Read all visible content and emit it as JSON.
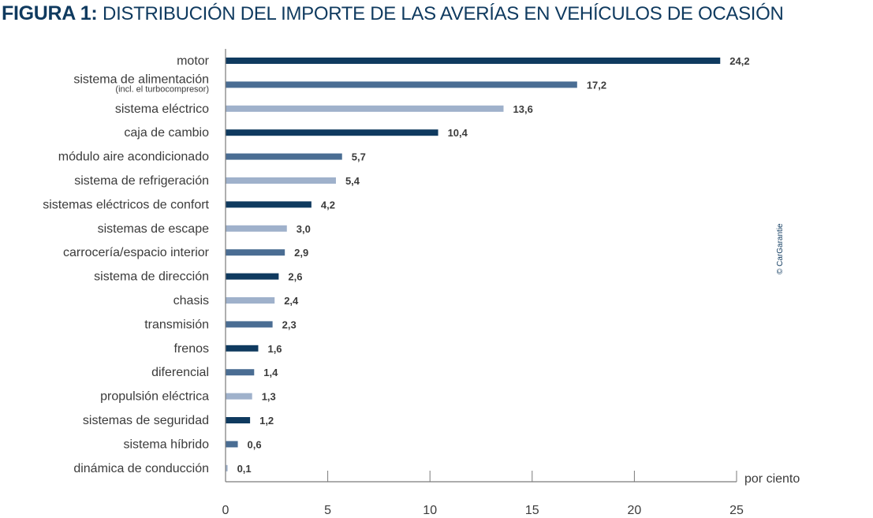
{
  "title": {
    "bold": "FIGURA 1:",
    "rest": "DISTRIBUCIÓN DEL IMPORTE DE LAS AVERÍAS EN VEHÍCULOS DE OCASIÓN"
  },
  "copyright": "© CarGarantie",
  "colors": {
    "dark": "#0f3a5f",
    "mid": "#4a6d93",
    "light": "#9fb1cb",
    "axis": "#7a7a7a",
    "text": "#3b3b3b"
  },
  "chart_data": {
    "type": "bar",
    "orientation": "horizontal",
    "title": "FIGURA 1: DISTRIBUCIÓN DEL IMPORTE DE LAS AVERÍAS EN VEHÍCULOS DE OCASIÓN",
    "xlabel": "por ciento",
    "ylabel": "",
    "xlim": [
      0,
      25
    ],
    "xticks": [
      0,
      5,
      10,
      15,
      20,
      25
    ],
    "xtick_labels": [
      "0",
      "5",
      "10",
      "15",
      "20",
      "25"
    ],
    "grid": false,
    "legend": "none",
    "categories": [
      {
        "label": "motor",
        "sublabel": "",
        "value": 24.2,
        "value_label": "24,2",
        "shade": "dark"
      },
      {
        "label": "sistema de alimentación",
        "sublabel": "(incl. el turbocompresor)",
        "value": 17.2,
        "value_label": "17,2",
        "shade": "mid"
      },
      {
        "label": "sistema eléctrico",
        "sublabel": "",
        "value": 13.6,
        "value_label": "13,6",
        "shade": "light"
      },
      {
        "label": "caja de cambio",
        "sublabel": "",
        "value": 10.4,
        "value_label": "10,4",
        "shade": "dark"
      },
      {
        "label": "módulo aire acondicionado",
        "sublabel": "",
        "value": 5.7,
        "value_label": "5,7",
        "shade": "mid"
      },
      {
        "label": "sistema de refrigeración",
        "sublabel": "",
        "value": 5.4,
        "value_label": "5,4",
        "shade": "light"
      },
      {
        "label": "sistemas eléctricos de confort",
        "sublabel": "",
        "value": 4.2,
        "value_label": "4,2",
        "shade": "dark"
      },
      {
        "label": "sistemas de escape",
        "sublabel": "",
        "value": 3.0,
        "value_label": "3,0",
        "shade": "light"
      },
      {
        "label": "carrocería/espacio interior",
        "sublabel": "",
        "value": 2.9,
        "value_label": "2,9",
        "shade": "mid"
      },
      {
        "label": "sistema de dirección",
        "sublabel": "",
        "value": 2.6,
        "value_label": "2,6",
        "shade": "dark"
      },
      {
        "label": "chasis",
        "sublabel": "",
        "value": 2.4,
        "value_label": "2,4",
        "shade": "light"
      },
      {
        "label": "transmisión",
        "sublabel": "",
        "value": 2.3,
        "value_label": "2,3",
        "shade": "mid"
      },
      {
        "label": "frenos",
        "sublabel": "",
        "value": 1.6,
        "value_label": "1,6",
        "shade": "dark"
      },
      {
        "label": "diferencial",
        "sublabel": "",
        "value": 1.4,
        "value_label": "1,4",
        "shade": "mid"
      },
      {
        "label": "propulsión eléctrica",
        "sublabel": "",
        "value": 1.3,
        "value_label": "1,3",
        "shade": "light"
      },
      {
        "label": "sistemas de seguridad",
        "sublabel": "",
        "value": 1.2,
        "value_label": "1,2",
        "shade": "dark"
      },
      {
        "label": "sistema híbrido",
        "sublabel": "",
        "value": 0.6,
        "value_label": "0,6",
        "shade": "mid"
      },
      {
        "label": "dinámica de conducción",
        "sublabel": "",
        "value": 0.1,
        "value_label": "0,1",
        "shade": "light"
      }
    ]
  }
}
